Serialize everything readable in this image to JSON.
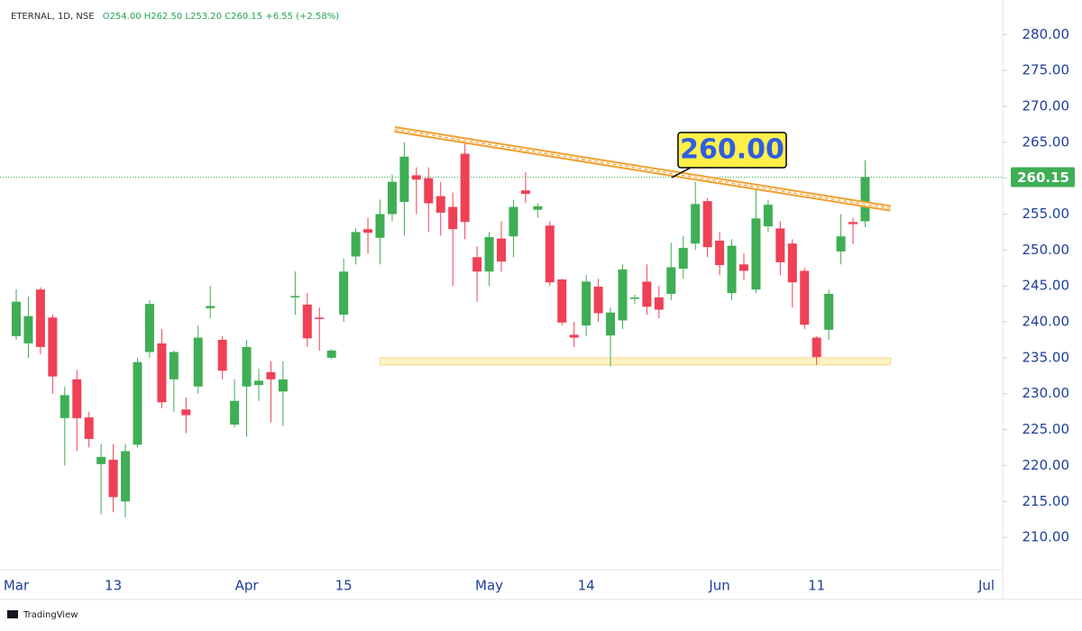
{
  "chart_data": {
    "type": "candlestick",
    "symbol": "ETERNAL, 1D, NSE",
    "ohlc_text": "O254.00 H262.50 L253.20 C260.15 +6.55 (+2.58%)",
    "brand": "TradingView",
    "annotation": "260.00",
    "up_color": "#3fae55",
    "down_color": "#ef4056",
    "categories": [
      "Mar",
      null,
      null,
      null,
      null,
      null,
      null,
      null,
      "13",
      null,
      null,
      null,
      null,
      null,
      null,
      null,
      null,
      null,
      null,
      "Apr",
      null,
      null,
      null,
      null,
      null,
      null,
      null,
      "15",
      null,
      null,
      null,
      null,
      null,
      null,
      null,
      null,
      null,
      null,
      null,
      "May",
      null,
      null,
      null,
      null,
      null,
      null,
      null,
      "14",
      null,
      null,
      null,
      null,
      null,
      null,
      null,
      null,
      null,
      null,
      "Jun",
      null,
      null,
      null,
      null,
      null,
      null,
      null,
      "11",
      null,
      null,
      null,
      null,
      null,
      null,
      null,
      null,
      null,
      null,
      null,
      null,
      null,
      "Jul"
    ],
    "open": [
      238,
      237,
      244.5,
      240.6,
      226.6,
      232,
      226.7,
      220.2,
      220.8,
      215,
      222.9,
      235.8,
      237,
      232,
      227.8,
      231,
      241.9,
      237.5,
      225.7,
      231,
      231.2,
      233,
      230.3,
      243.4,
      242.4,
      240.6,
      235,
      241,
      249.1,
      252.9,
      251.7,
      255,
      256.7,
      260.4,
      260,
      257.5,
      256,
      263.4,
      249,
      247,
      251.6,
      251.9,
      258.3,
      255.6,
      253.4,
      245.9,
      238.2,
      239.5,
      244.9,
      238.1,
      240.2,
      243.2,
      245.6,
      243.4,
      243.9,
      247.4,
      250.9,
      256.8,
      251.3,
      244,
      248,
      244.5,
      253.3,
      253,
      250.9,
      247.1,
      237.8,
      238.9,
      249.8,
      253.9,
      254,
      null,
      null,
      null,
      null,
      null,
      null,
      null,
      null,
      null,
      null
    ],
    "high": [
      244.5,
      243.5,
      244.8,
      241,
      231,
      233.3,
      227.5,
      223,
      223,
      223,
      235,
      243,
      239,
      236,
      229.5,
      239.5,
      245,
      238,
      232,
      237.5,
      233.5,
      234.5,
      234.5,
      247,
      244,
      242,
      236.2,
      248.8,
      253,
      254.5,
      257,
      260.5,
      265,
      261.5,
      261.5,
      259.5,
      258,
      265.3,
      250.5,
      252.5,
      254,
      257,
      260.8,
      256.5,
      254,
      246,
      240,
      246.5,
      246,
      242,
      248,
      243.8,
      248,
      245,
      251,
      252,
      259.5,
      257.2,
      252.5,
      251.5,
      249.5,
      258.5,
      257,
      254,
      251.5,
      247.5,
      238,
      244.5,
      255,
      254.5,
      262.5,
      null,
      null,
      null,
      null,
      null,
      null,
      null,
      null,
      null,
      null
    ],
    "low": [
      237.5,
      235,
      235.5,
      230,
      220,
      222,
      222.5,
      213.2,
      213.5,
      212.8,
      222.5,
      235,
      228,
      227.5,
      224.5,
      230,
      240.5,
      232,
      225.3,
      224,
      229,
      226,
      225.5,
      241,
      236.5,
      236,
      234.8,
      240,
      248,
      249.5,
      248,
      254,
      252,
      255,
      252.5,
      252,
      245,
      251.5,
      242.8,
      245,
      247,
      249,
      256.5,
      254.5,
      245,
      239.5,
      236.5,
      238,
      240,
      233.8,
      239,
      242.5,
      241,
      240.5,
      243,
      246,
      250,
      249,
      246.5,
      243,
      245.8,
      244,
      252.5,
      246.5,
      242,
      239,
      234,
      237.5,
      248,
      250.8,
      253.2,
      null,
      null,
      null,
      null,
      null,
      null,
      null,
      null,
      null,
      null
    ],
    "close": [
      242.8,
      240.8,
      236.5,
      232.4,
      229.8,
      226.6,
      223.7,
      221.2,
      215.6,
      222,
      234.4,
      242.5,
      228.8,
      235.8,
      227,
      237.8,
      242.2,
      233.2,
      229,
      236.5,
      231.8,
      232,
      232,
      243.6,
      237.7,
      240.4,
      236,
      247,
      252.5,
      252.4,
      255,
      259.5,
      263,
      259.8,
      256.5,
      255.2,
      252.9,
      253.9,
      247,
      251.8,
      248.4,
      256,
      257.8,
      256.1,
      245.5,
      239.9,
      237.8,
      245.6,
      241.2,
      241.3,
      247.3,
      243.4,
      242.1,
      241.7,
      247.6,
      250.3,
      256.4,
      250.4,
      247.9,
      250.6,
      247.1,
      254.4,
      256.3,
      248.3,
      245.5,
      239.6,
      235.1,
      243.9,
      251.9,
      253.6,
      260.15,
      null,
      null,
      null,
      null,
      null,
      null,
      null,
      null,
      null,
      null
    ],
    "ylim": [
      205.5,
      284.8
    ],
    "yticks": [
      {
        "value": 210,
        "label": "210.00"
      },
      {
        "value": 215,
        "label": "215.00"
      },
      {
        "value": 220,
        "label": "220.00"
      },
      {
        "value": 225,
        "label": "225.00"
      },
      {
        "value": 230,
        "label": "230.00"
      },
      {
        "value": 235,
        "label": "235.00"
      },
      {
        "value": 240,
        "label": "240.00"
      },
      {
        "value": 245,
        "label": "245.00"
      },
      {
        "value": 250,
        "label": "250.00"
      },
      {
        "value": 255,
        "label": "255.00"
      },
      {
        "value": 260,
        "label": "260.00"
      },
      {
        "value": 265,
        "label": "265.00"
      },
      {
        "value": 270,
        "label": "270.00"
      },
      {
        "value": 275,
        "label": "275.00"
      },
      {
        "value": 280,
        "label": "280.00"
      }
    ],
    "trendline": {
      "x": [
        31.2,
        72.1
      ],
      "y": [
        266.8,
        255.8
      ],
      "color": "#f0a030"
    },
    "support_band": {
      "x": [
        30.0,
        72.1
      ],
      "y": [
        234,
        235
      ],
      "color": "#fff2c4"
    }
  }
}
